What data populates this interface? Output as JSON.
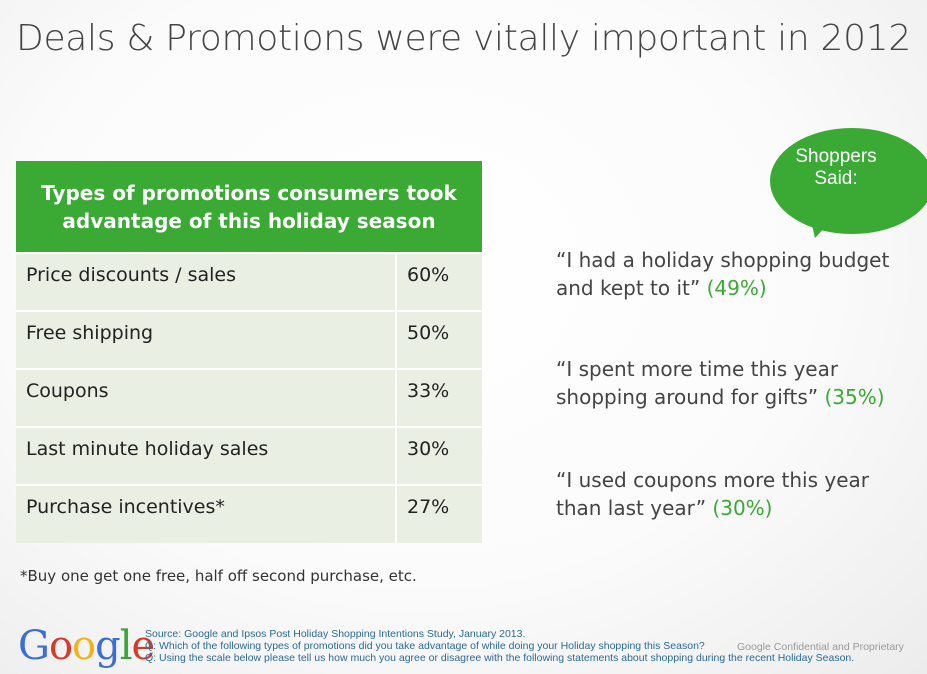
{
  "title": "Deals & Promotions were vitally important in 2012",
  "table": {
    "header": "Types of promotions consumers took advantage of this holiday season",
    "rows": [
      {
        "label": "Price discounts / sales",
        "value": "60%"
      },
      {
        "label": "Free shipping",
        "value": "50%"
      },
      {
        "label": "Coupons",
        "value": "33%"
      },
      {
        "label": "Last minute holiday sales",
        "value": "30%"
      },
      {
        "label": "Purchase incentives*",
        "value": "27%"
      }
    ]
  },
  "footnote": "*Buy one get one free, half off second purchase, etc.",
  "bubble": {
    "text": "Shoppers Said:"
  },
  "quotes": [
    {
      "text": "“I had a holiday shopping budget and kept to it”",
      "pct": "(49%)"
    },
    {
      "text": "“I spent more time this year shopping around for gifts”",
      "pct": "(35%)"
    },
    {
      "text": "“I used coupons more this year than last year”",
      "pct": "(30%)"
    }
  ],
  "footer": {
    "logo": "Google",
    "source": "Source: Google and Ipsos Post Holiday Shopping Intentions Study, January 2013.",
    "q1": "Q: Which of the following types of promotions did you take advantage of while doing your Holiday shopping this Season?",
    "q2": "Q: Using the scale below please tell us how much you agree or disagree with the following statements about shopping during the recent Holiday Season.",
    "confidential": "Google Confidential and Proprietary"
  },
  "colors": {
    "accent_green": "#3aaa35",
    "table_row_bg": "#e9efe3",
    "google_blue": "#3b6fd4",
    "google_red": "#d63a2b",
    "google_yellow": "#f0b31b",
    "google_green": "#3aa537"
  }
}
